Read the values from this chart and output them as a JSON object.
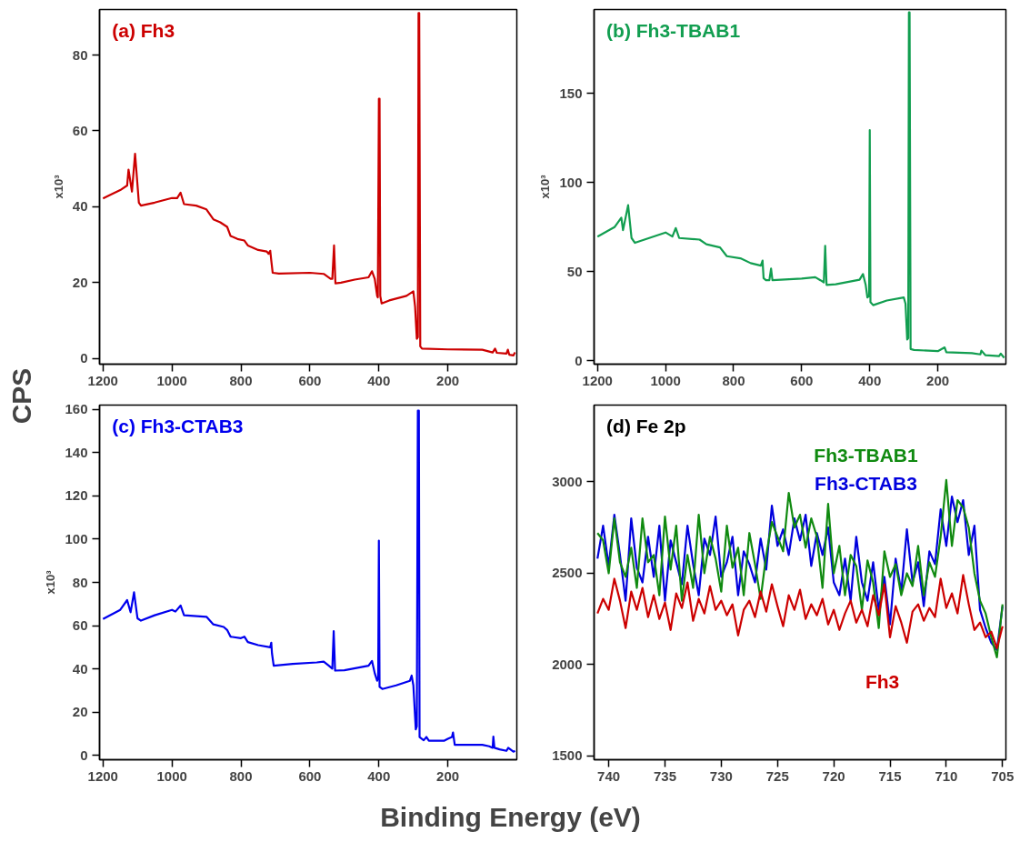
{
  "chart_data": [
    {
      "type": "line",
      "title": "(a) Fh3",
      "ylabel": "x10³",
      "annotations": [
        "CPS",
        "Binding Energy (eV)"
      ],
      "xlim": [
        1210,
        0
      ],
      "ylim": [
        -1.5,
        92
      ],
      "xticks": [
        1200,
        1000,
        800,
        600,
        400,
        200
      ],
      "yticks": [
        0,
        20,
        40,
        60,
        80
      ],
      "series": [
        {
          "color": "#cc0000",
          "x": [
            1200,
            1180,
            1150,
            1130,
            1126,
            1116,
            1107,
            1096,
            1090,
            1050,
            1000,
            985,
            975,
            965,
            930,
            900,
            880,
            860,
            840,
            830,
            810,
            790,
            780,
            750,
            725,
            720,
            715,
            712,
            708,
            690,
            600,
            560,
            540,
            535,
            530,
            526,
            510,
            470,
            430,
            420,
            412,
            405,
            403,
            400,
            398,
            396,
            392,
            370,
            320,
            300,
            295,
            290,
            287,
            285,
            283,
            280,
            275,
            200,
            100,
            70,
            63,
            58,
            30,
            26,
            22,
            10,
            5
          ],
          "values": [
            42.2,
            43.1,
            44.4,
            45.6,
            49.8,
            44,
            54,
            41.1,
            40.3,
            41.1,
            42.3,
            42.3,
            43.7,
            40.7,
            40.3,
            39.3,
            36.7,
            35.9,
            34.7,
            32.3,
            31.5,
            31.1,
            29.8,
            28.6,
            28.2,
            27.6,
            28.4,
            25.8,
            22.6,
            22.4,
            22.6,
            22.3,
            21,
            21,
            29.8,
            19.8,
            20,
            20.8,
            21.4,
            23,
            21,
            16.5,
            16.1,
            68.5,
            68.5,
            16.5,
            14.5,
            15.3,
            16.5,
            17.7,
            13.7,
            5.2,
            5.6,
            91.1,
            91.1,
            3.2,
            2.6,
            2.4,
            2.3,
            1.6,
            2.6,
            1.5,
            1.3,
            2.3,
            1,
            0.8,
            1.6
          ]
        }
      ]
    },
    {
      "type": "line",
      "title": "(b) Fh3-TBAB1",
      "ylabel": "x10³",
      "xlim": [
        1210,
        0
      ],
      "ylim": [
        -2,
        197
      ],
      "xticks": [
        1200,
        1000,
        800,
        600,
        400,
        200
      ],
      "yticks": [
        0,
        50,
        100,
        150
      ],
      "series": [
        {
          "color": "#129e50",
          "x": [
            1200,
            1150,
            1130,
            1125,
            1110,
            1100,
            1090,
            1000,
            980,
            970,
            960,
            900,
            880,
            840,
            820,
            780,
            750,
            720,
            715,
            712,
            705,
            695,
            690,
            686,
            600,
            560,
            545,
            535,
            531,
            527,
            500,
            430,
            420,
            412,
            407,
            402,
            400,
            398,
            390,
            350,
            300,
            295,
            290,
            287,
            285,
            283,
            280,
            270,
            200,
            180,
            175,
            100,
            75,
            72,
            60,
            20,
            15,
            5
          ],
          "values": [
            69.6,
            74.9,
            80.2,
            73.2,
            87.2,
            68.8,
            66.1,
            71.9,
            69.6,
            74.4,
            68.8,
            67.9,
            65.3,
            63.5,
            58.6,
            57.4,
            54.7,
            53.3,
            56.1,
            46.3,
            45.1,
            45.1,
            51.6,
            45.1,
            46,
            46.8,
            45.1,
            43.9,
            64.4,
            42.5,
            42.8,
            45.4,
            48.6,
            42.5,
            35.4,
            36.3,
            129.3,
            32.8,
            31.1,
            33.7,
            35.4,
            31.9,
            11.8,
            12.6,
            195.4,
            195.4,
            6.5,
            6,
            5.3,
            7.4,
            4.7,
            4.2,
            3.5,
            5.6,
            3,
            2.5,
            3.9,
            1.6
          ]
        }
      ]
    },
    {
      "type": "line",
      "title": "(c) Fh3-CTAB3",
      "ylabel": "x10³",
      "xlim": [
        1210,
        0
      ],
      "ylim": [
        -2,
        162
      ],
      "xticks": [
        1200,
        1000,
        800,
        600,
        400,
        200
      ],
      "yticks": [
        0,
        20,
        40,
        60,
        80,
        100,
        120,
        140,
        160
      ],
      "series": [
        {
          "color": "#0000ee",
          "x": [
            1200,
            1150,
            1130,
            1120,
            1110,
            1100,
            1090,
            1050,
            1000,
            990,
            975,
            965,
            900,
            880,
            850,
            840,
            830,
            800,
            790,
            780,
            750,
            715,
            712,
            710,
            705,
            650,
            580,
            560,
            545,
            535,
            531,
            527,
            500,
            430,
            420,
            412,
            405,
            402,
            400,
            398,
            390,
            350,
            310,
            305,
            300,
            293,
            290,
            287,
            284,
            282,
            270,
            262,
            255,
            210,
            200,
            188,
            185,
            180,
            100,
            80,
            70,
            68,
            65,
            50,
            30,
            25,
            10,
            5
          ],
          "values": [
            63.1,
            67.3,
            71.8,
            66.2,
            75.4,
            63.4,
            62.3,
            64.8,
            67.3,
            66.5,
            69.3,
            64.8,
            64.1,
            60.6,
            59.4,
            58,
            54.9,
            54.2,
            54.9,
            52.4,
            51,
            50,
            52.1,
            47.2,
            41.5,
            42.3,
            43,
            43.4,
            41.5,
            40.1,
            57.5,
            39.2,
            39.4,
            41.5,
            43.7,
            38,
            34.5,
            35.9,
            99.3,
            31.7,
            30.7,
            32.4,
            34.5,
            36.9,
            32.4,
            12,
            13.4,
            159.4,
            159.4,
            8.5,
            7,
            8.5,
            6.8,
            6.8,
            7.7,
            8.5,
            10.6,
            4.9,
            4.9,
            4.2,
            3.5,
            8.7,
            3.5,
            2.8,
            2.1,
            3.5,
            1.7,
            2.1
          ]
        }
      ]
    },
    {
      "type": "line",
      "title": "(d) Fe 2p",
      "xlim": [
        741.3,
        704.7
      ],
      "ylim": [
        1480,
        3420
      ],
      "xticks": [
        740,
        735,
        730,
        725,
        720,
        715,
        710,
        705
      ],
      "yticks": [
        1500,
        2000,
        2500,
        3000
      ],
      "x": [
        741,
        740.5,
        740,
        739.5,
        739,
        738.5,
        738,
        737.5,
        737,
        736.5,
        736,
        735.5,
        735,
        734.5,
        734,
        733.5,
        733,
        732.5,
        732,
        731.5,
        731,
        730.5,
        730,
        729.5,
        729,
        728.5,
        728,
        727.5,
        727,
        726.5,
        726,
        725.5,
        725,
        724.5,
        724,
        723.5,
        723,
        722.5,
        722,
        721.5,
        721,
        720.5,
        720,
        719.5,
        719,
        718.5,
        718,
        717.5,
        717,
        716.5,
        716,
        715.5,
        715,
        714.5,
        714,
        713.5,
        713,
        712.5,
        712,
        711.5,
        711,
        710.5,
        710,
        709.5,
        709,
        708.5,
        708,
        707.5,
        707,
        706.5,
        706,
        705.5,
        705
      ],
      "series": [
        {
          "name": "Fh3-CTAB3",
          "color": "#0000dd",
          "values": [
            2580,
            2760,
            2540,
            2820,
            2600,
            2350,
            2800,
            2530,
            2450,
            2700,
            2480,
            2760,
            2350,
            2680,
            2560,
            2440,
            2760,
            2550,
            2380,
            2690,
            2600,
            2810,
            2480,
            2560,
            2700,
            2380,
            2620,
            2550,
            2450,
            2690,
            2520,
            2870,
            2650,
            2740,
            2600,
            2800,
            2680,
            2820,
            2540,
            2720,
            2600,
            2750,
            2450,
            2380,
            2580,
            2350,
            2700,
            2450,
            2350,
            2560,
            2300,
            2480,
            2220,
            2580,
            2400,
            2740,
            2450,
            2560,
            2320,
            2620,
            2550,
            2850,
            2650,
            2920,
            2780,
            2900,
            2600,
            2760,
            2300,
            2200,
            2120,
            2080,
            2320
          ]
        },
        {
          "name": "Fh3-TBAB1",
          "color": "#108a10",
          "values": [
            2720,
            2680,
            2500,
            2800,
            2560,
            2480,
            2640,
            2420,
            2800,
            2560,
            2600,
            2380,
            2810,
            2520,
            2760,
            2350,
            2600,
            2420,
            2820,
            2500,
            2700,
            2580,
            2400,
            2760,
            2530,
            2640,
            2380,
            2720,
            2550,
            2360,
            2600,
            2780,
            2700,
            2620,
            2940,
            2750,
            2820,
            2640,
            2800,
            2700,
            2420,
            2880,
            2500,
            2650,
            2380,
            2600,
            2540,
            2300,
            2570,
            2450,
            2200,
            2620,
            2480,
            2550,
            2380,
            2500,
            2430,
            2650,
            2380,
            2560,
            2480,
            2700,
            3010,
            2650,
            2900,
            2860,
            2750,
            2500,
            2350,
            2280,
            2150,
            2040,
            2330
          ]
        },
        {
          "name": "Fh3",
          "color": "#cc0000",
          "values": [
            2280,
            2360,
            2300,
            2470,
            2350,
            2200,
            2400,
            2300,
            2420,
            2260,
            2380,
            2250,
            2340,
            2190,
            2390,
            2310,
            2450,
            2240,
            2360,
            2280,
            2430,
            2300,
            2350,
            2270,
            2330,
            2160,
            2300,
            2350,
            2260,
            2400,
            2290,
            2440,
            2320,
            2210,
            2380,
            2300,
            2410,
            2250,
            2330,
            2270,
            2360,
            2220,
            2300,
            2190,
            2280,
            2350,
            2230,
            2300,
            2210,
            2380,
            2270,
            2440,
            2150,
            2320,
            2230,
            2120,
            2290,
            2330,
            2240,
            2310,
            2260,
            2470,
            2310,
            2390,
            2280,
            2490,
            2330,
            2190,
            2230,
            2150,
            2180,
            2090,
            2210
          ]
        }
      ]
    }
  ]
}
